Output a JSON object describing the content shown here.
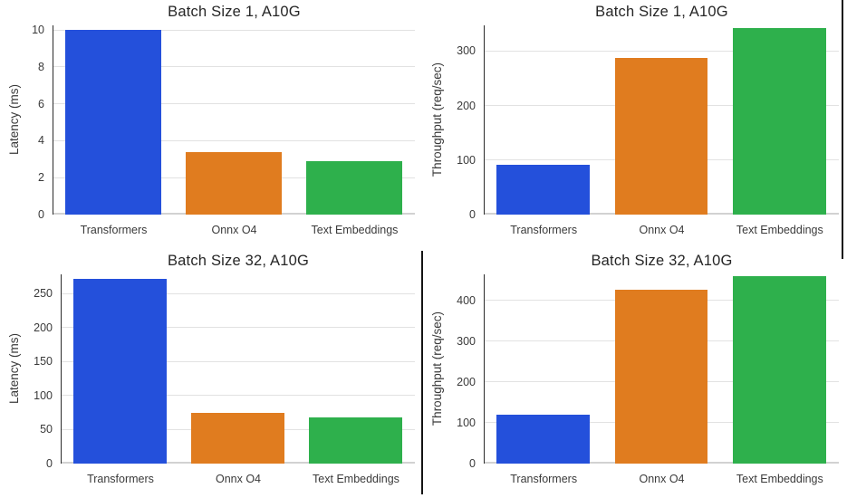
{
  "figure": {
    "background": "#ffffff",
    "categories": [
      "Transformers",
      "Onnx O4",
      "Text Embeddings"
    ]
  },
  "palette": {
    "bar_colors": [
      "#2450db",
      "#e07c1f",
      "#2eb04c"
    ],
    "grid": "#e2e2e2",
    "baseline": "#d2d2d2",
    "spine": "#2b2b2b",
    "tick_text": "#3a3a3a",
    "title_text": "#262626",
    "divider": "#141414"
  },
  "chart_data": [
    {
      "type": "bar",
      "title": "Batch Size 1, A10G",
      "ylabel": "Latency (ms)",
      "xlabel": "",
      "categories": [
        "Transformers",
        "Onnx O4",
        "Text Embeddings"
      ],
      "values": [
        10.0,
        3.4,
        2.9
      ],
      "yticks": [
        0,
        2,
        4,
        6,
        8,
        10
      ],
      "ylim": [
        0,
        10.25
      ],
      "grid": true,
      "legend": false
    },
    {
      "type": "bar",
      "title": "Batch Size 1, A10G",
      "ylabel": "Throughput (req/sec)",
      "xlabel": "",
      "categories": [
        "Transformers",
        "Onnx O4",
        "Text Embeddings"
      ],
      "values": [
        92,
        288,
        342
      ],
      "yticks": [
        0,
        100,
        200,
        300
      ],
      "ylim": [
        0,
        347
      ],
      "grid": true,
      "legend": false
    },
    {
      "type": "bar",
      "title": "Batch Size 32, A10G",
      "ylabel": "Latency (ms)",
      "xlabel": "",
      "categories": [
        "Transformers",
        "Onnx O4",
        "Text Embeddings"
      ],
      "values": [
        271,
        75,
        68
      ],
      "yticks": [
        0,
        50,
        100,
        150,
        200,
        250
      ],
      "ylim": [
        0,
        278
      ],
      "grid": true,
      "legend": false
    },
    {
      "type": "bar",
      "title": "Batch Size 32, A10G",
      "ylabel": "Throughput (req/sec)",
      "xlabel": "",
      "categories": [
        "Transformers",
        "Onnx O4",
        "Text Embeddings"
      ],
      "values": [
        120,
        426,
        460
      ],
      "yticks": [
        0,
        100,
        200,
        300,
        400
      ],
      "ylim": [
        0,
        464
      ],
      "grid": true,
      "legend": false
    }
  ]
}
